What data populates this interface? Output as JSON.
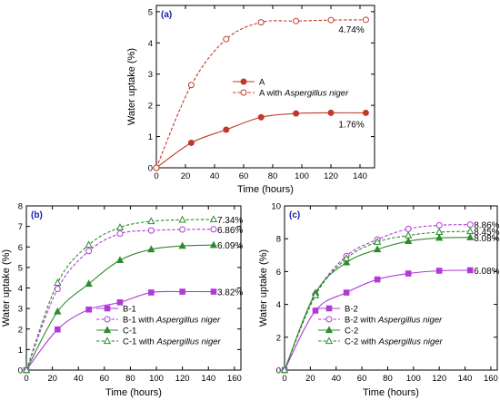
{
  "chart_data": [
    {
      "panel": "(a)",
      "type": "line",
      "xlabel": "Time (hours)",
      "ylabel": "Water uptake (%)",
      "xlim": [
        0,
        150
      ],
      "ylim": [
        0,
        5.2
      ],
      "xticks": [
        0,
        20,
        40,
        60,
        80,
        100,
        120,
        140
      ],
      "yticks": [
        0,
        1,
        2,
        3,
        4,
        5
      ],
      "legend_position": "center-right",
      "series": [
        {
          "name": "A",
          "name_suffix": "",
          "color": "#c0392b",
          "marker": "circle",
          "filled": true,
          "dashed": false,
          "x": [
            0,
            24,
            48,
            72,
            96,
            120,
            144
          ],
          "y": [
            0,
            0.8,
            1.22,
            1.62,
            1.74,
            1.76,
            1.76
          ],
          "end_label": "1.76%"
        },
        {
          "name": "A with ",
          "name_suffix": "Aspergillus niger",
          "color": "#c0392b",
          "marker": "circle",
          "filled": false,
          "dashed": true,
          "x": [
            0,
            24,
            48,
            72,
            96,
            120,
            144
          ],
          "y": [
            0,
            2.65,
            4.12,
            4.66,
            4.7,
            4.73,
            4.74
          ],
          "end_label": "4.74%"
        }
      ]
    },
    {
      "panel": "(b)",
      "type": "line",
      "xlabel": "Time (hours)",
      "ylabel": "Water uptake (%)",
      "xlim": [
        0,
        165
      ],
      "ylim": [
        0,
        8
      ],
      "xticks": [
        0,
        20,
        40,
        60,
        80,
        100,
        120,
        140,
        160
      ],
      "yticks": [
        0,
        1,
        2,
        3,
        4,
        5,
        6,
        7,
        8
      ],
      "legend_position": "bottom-right",
      "series": [
        {
          "name": "B-1",
          "name_suffix": "",
          "color": "#b03ad8",
          "marker": "square",
          "filled": true,
          "dashed": false,
          "x": [
            0,
            24,
            48,
            72,
            96,
            120,
            144
          ],
          "y": [
            0,
            1.98,
            2.95,
            3.3,
            3.78,
            3.82,
            3.82
          ],
          "end_label": "3.82%"
        },
        {
          "name": "B-1 with ",
          "name_suffix": "Aspergillus niger",
          "color": "#b03ad8",
          "marker": "circle",
          "filled": false,
          "dashed": true,
          "x": [
            0,
            24,
            48,
            72,
            96,
            120,
            144
          ],
          "y": [
            0,
            3.95,
            5.8,
            6.65,
            6.8,
            6.85,
            6.86
          ],
          "end_label": "6.86%"
        },
        {
          "name": "C-1",
          "name_suffix": "",
          "color": "#2e8b2e",
          "marker": "triangle",
          "filled": true,
          "dashed": false,
          "x": [
            0,
            24,
            48,
            72,
            96,
            120,
            144
          ],
          "y": [
            0,
            2.85,
            4.2,
            5.35,
            5.88,
            6.05,
            6.09
          ],
          "end_label": "6.09%"
        },
        {
          "name": "C-1 with ",
          "name_suffix": "Aspergillus niger",
          "color": "#2e8b2e",
          "marker": "triangle",
          "filled": false,
          "dashed": true,
          "x": [
            0,
            24,
            48,
            72,
            96,
            120,
            144
          ],
          "y": [
            0,
            4.25,
            6.1,
            6.95,
            7.25,
            7.32,
            7.34
          ],
          "end_label": "7.34%"
        }
      ]
    },
    {
      "panel": "(c)",
      "type": "line",
      "xlabel": "Time (hours)",
      "ylabel": "Water uptake (%)",
      "xlim": [
        0,
        165
      ],
      "ylim": [
        0,
        10
      ],
      "xticks": [
        0,
        20,
        40,
        60,
        80,
        100,
        120,
        140,
        160
      ],
      "yticks": [
        0,
        2,
        4,
        6,
        8,
        10
      ],
      "legend_position": "bottom-right",
      "series": [
        {
          "name": "B-2",
          "name_suffix": "",
          "color": "#b03ad8",
          "marker": "square",
          "filled": true,
          "dashed": false,
          "x": [
            0,
            24,
            48,
            72,
            96,
            120,
            144
          ],
          "y": [
            0,
            3.62,
            4.72,
            5.52,
            5.88,
            6.05,
            6.08
          ],
          "end_label": "6.08%"
        },
        {
          "name": "B-2 with ",
          "name_suffix": "Aspergillus niger",
          "color": "#b03ad8",
          "marker": "circle",
          "filled": false,
          "dashed": true,
          "x": [
            0,
            24,
            48,
            72,
            96,
            120,
            144
          ],
          "y": [
            0,
            4.6,
            6.95,
            7.95,
            8.6,
            8.82,
            8.86
          ],
          "end_label": "8.86%"
        },
        {
          "name": "C-2",
          "name_suffix": "",
          "color": "#2e8b2e",
          "marker": "triangle",
          "filled": true,
          "dashed": false,
          "x": [
            0,
            24,
            48,
            72,
            96,
            120,
            144
          ],
          "y": [
            0,
            4.7,
            6.55,
            7.35,
            7.85,
            8.05,
            8.08
          ],
          "end_label": "8.08%"
        },
        {
          "name": "C-2 with ",
          "name_suffix": "Aspergillus niger",
          "color": "#2e8b2e",
          "marker": "triangle",
          "filled": false,
          "dashed": true,
          "x": [
            0,
            24,
            48,
            72,
            96,
            120,
            144
          ],
          "y": [
            0,
            4.55,
            6.8,
            7.8,
            8.2,
            8.4,
            8.45
          ],
          "end_label": "8.45%"
        }
      ]
    }
  ]
}
